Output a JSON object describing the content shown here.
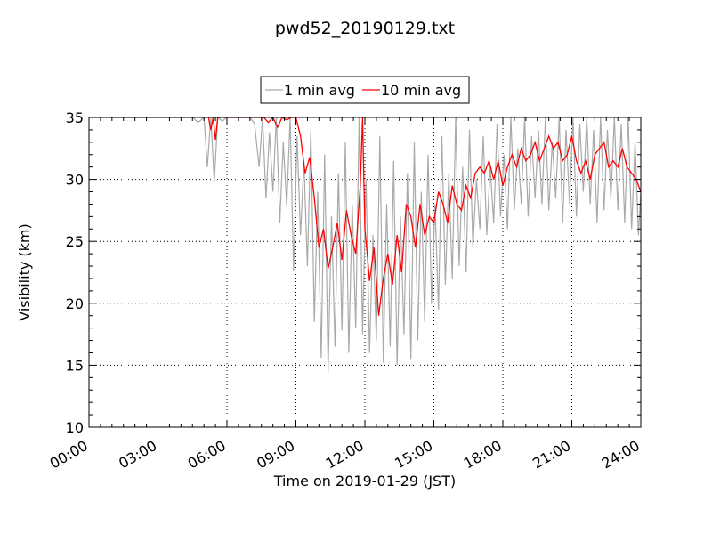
{
  "chart_data": {
    "type": "line",
    "title": "pwd52_20190129.txt",
    "xlabel": "Time on 2019-01-29 (JST)",
    "ylabel": "Visibility (km)",
    "xlim": [
      0,
      24
    ],
    "ylim": [
      10,
      35
    ],
    "x_tick_values": [
      0,
      3,
      6,
      9,
      12,
      15,
      18,
      21,
      24
    ],
    "x_ticks": [
      "00:00",
      "03:00",
      "06:00",
      "09:00",
      "12:00",
      "15:00",
      "18:00",
      "21:00",
      "24:00"
    ],
    "y_ticks": [
      10,
      15,
      20,
      25,
      30,
      35
    ],
    "grid": true,
    "legend_position": "top-center, above plot",
    "series": [
      {
        "name": "1 min avg",
        "color": "#a9a9a9",
        "x": [
          0,
          0.5,
          1.0,
          1.5,
          2.0,
          2.5,
          3.0,
          3.5,
          4.0,
          4.5,
          4.75,
          5.0,
          5.15,
          5.3,
          5.45,
          5.6,
          5.8,
          6.0,
          6.5,
          7.0,
          7.2,
          7.4,
          7.55,
          7.7,
          7.85,
          8.0,
          8.15,
          8.3,
          8.45,
          8.6,
          8.75,
          8.9,
          9.05,
          9.2,
          9.35,
          9.5,
          9.65,
          9.8,
          9.95,
          10.1,
          10.25,
          10.4,
          10.55,
          10.7,
          10.85,
          11.0,
          11.15,
          11.3,
          11.45,
          11.6,
          11.75,
          11.9,
          12.05,
          12.2,
          12.35,
          12.5,
          12.65,
          12.8,
          12.95,
          13.1,
          13.25,
          13.4,
          13.55,
          13.7,
          13.85,
          14.0,
          14.15,
          14.3,
          14.45,
          14.6,
          14.75,
          14.9,
          15.05,
          15.2,
          15.35,
          15.5,
          15.65,
          15.8,
          15.95,
          16.1,
          16.25,
          16.4,
          16.55,
          16.7,
          16.85,
          17.0,
          17.15,
          17.3,
          17.45,
          17.6,
          17.75,
          17.9,
          18.05,
          18.2,
          18.35,
          18.5,
          18.65,
          18.8,
          18.95,
          19.1,
          19.25,
          19.4,
          19.55,
          19.7,
          19.85,
          20.0,
          20.15,
          20.3,
          20.45,
          20.6,
          20.75,
          20.9,
          21.05,
          21.2,
          21.35,
          21.5,
          21.65,
          21.8,
          21.95,
          22.1,
          22.25,
          22.4,
          22.55,
          22.7,
          22.85,
          23.0,
          23.15,
          23.3,
          23.45,
          23.6,
          23.75,
          23.9,
          24.0
        ],
        "values": [
          35,
          35,
          35,
          35,
          35,
          35,
          35,
          35,
          35,
          35,
          34.6,
          35,
          31.0,
          35,
          29.8,
          35,
          34.7,
          35,
          35,
          35,
          34.5,
          31.0,
          35,
          28.5,
          33.8,
          29.0,
          35,
          26.5,
          33.0,
          27.8,
          35,
          22.6,
          33.5,
          25.5,
          31.5,
          23.0,
          34.0,
          18.5,
          29.0,
          15.6,
          32.0,
          14.5,
          27.0,
          16.5,
          30.5,
          17.8,
          33.0,
          16.0,
          28.0,
          18.0,
          35,
          17.5,
          30.0,
          16.0,
          25.5,
          17.0,
          33.5,
          15.2,
          28.0,
          16.5,
          31.5,
          15.0,
          27.0,
          17.5,
          30.5,
          15.5,
          33.0,
          17.0,
          29.0,
          18.5,
          32.0,
          20.0,
          28.0,
          19.5,
          33.5,
          21.5,
          30.5,
          22.0,
          35,
          23.0,
          31.0,
          22.5,
          34.0,
          24.5,
          30.0,
          26.0,
          33.5,
          25.5,
          31.0,
          26.5,
          34.5,
          27.0,
          32.0,
          26.0,
          35,
          27.5,
          32.5,
          28.0,
          35,
          27.0,
          33.5,
          28.5,
          34.0,
          28.0,
          35,
          27.5,
          33.0,
          28.5,
          35,
          26.5,
          34.0,
          28.0,
          35,
          27.0,
          34.5,
          29.0,
          35,
          28.0,
          34.0,
          26.5,
          35,
          27.5,
          34.0,
          28.5,
          35,
          27.5,
          34.5,
          26.5,
          35,
          26.0,
          33.0,
          25.5,
          29.0
        ]
      },
      {
        "name": "10 min avg",
        "color": "#ff0000",
        "x": [
          5.2,
          5.3,
          5.4,
          5.5,
          5.6,
          7.6,
          7.8,
          8.0,
          8.2,
          8.4,
          8.6,
          8.8,
          9.0,
          9.2,
          9.4,
          9.6,
          9.8,
          10.0,
          10.2,
          10.4,
          10.6,
          10.8,
          11.0,
          11.2,
          11.4,
          11.6,
          11.8,
          11.9,
          12.0,
          12.1,
          12.2,
          12.4,
          12.6,
          12.8,
          13.0,
          13.2,
          13.4,
          13.6,
          13.8,
          14.0,
          14.2,
          14.4,
          14.6,
          14.8,
          15.0,
          15.2,
          15.4,
          15.6,
          15.8,
          16.0,
          16.2,
          16.4,
          16.6,
          16.8,
          17.0,
          17.2,
          17.4,
          17.6,
          17.8,
          18.0,
          18.2,
          18.4,
          18.6,
          18.8,
          19.0,
          19.2,
          19.4,
          19.6,
          19.8,
          20.0,
          20.2,
          20.4,
          20.6,
          20.8,
          21.0,
          21.2,
          21.4,
          21.6,
          21.8,
          22.0,
          22.2,
          22.4,
          22.6,
          22.8,
          23.0,
          23.2,
          23.4,
          23.6,
          23.8,
          24.0
        ],
        "values": [
          35,
          34.0,
          35,
          33.2,
          35,
          35,
          34.6,
          35,
          34.2,
          35,
          34.8,
          35,
          35,
          33.5,
          30.5,
          31.8,
          28.5,
          24.5,
          26.0,
          22.8,
          24.5,
          26.5,
          23.5,
          27.5,
          25.5,
          24.0,
          29.5,
          35,
          26.0,
          24.0,
          21.8,
          24.5,
          19.0,
          22.0,
          24.0,
          21.5,
          25.5,
          22.5,
          28.0,
          27.0,
          24.5,
          28.0,
          25.5,
          27.0,
          26.5,
          29.0,
          28.0,
          26.5,
          29.5,
          28.0,
          27.5,
          29.5,
          28.5,
          30.5,
          31.0,
          30.5,
          31.5,
          30.0,
          31.5,
          29.5,
          31.0,
          32.0,
          31.0,
          32.5,
          31.5,
          32.0,
          33.0,
          31.5,
          32.5,
          33.5,
          32.5,
          33.0,
          31.5,
          32.0,
          33.5,
          31.5,
          30.5,
          31.5,
          30.0,
          32.0,
          32.5,
          33.0,
          31.0,
          31.5,
          31.0,
          32.5,
          31.0,
          30.5,
          30.0,
          29.0
        ]
      }
    ]
  }
}
